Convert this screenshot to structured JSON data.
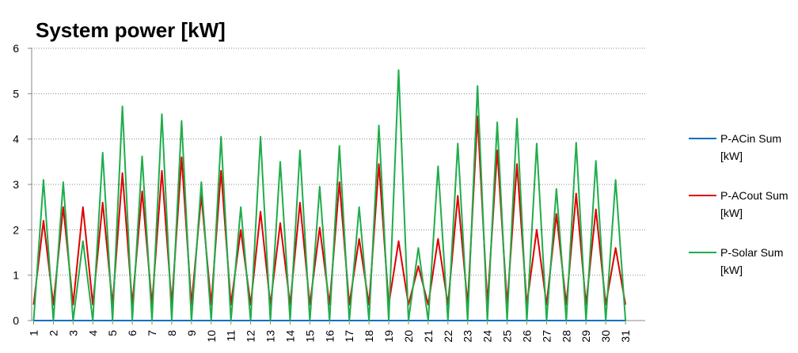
{
  "chart_data": {
    "type": "line",
    "title": "System power [kW]",
    "x": [
      1,
      1.5,
      2,
      2.5,
      3,
      3.5,
      4,
      4.5,
      5,
      5.5,
      6,
      6.5,
      7,
      7.5,
      8,
      8.5,
      9,
      9.5,
      10,
      10.5,
      11,
      11.5,
      12,
      12.5,
      13,
      13.5,
      14,
      14.5,
      15,
      15.5,
      16,
      16.5,
      17,
      17.5,
      18,
      18.5,
      19,
      19.5,
      20,
      20.5,
      21,
      21.5,
      22,
      22.5,
      23,
      23.5,
      24,
      24.5,
      25,
      25.5,
      26,
      26.5,
      27,
      27.5,
      28,
      28.5,
      29,
      29.5,
      30,
      30.5,
      31
    ],
    "series": [
      {
        "name": "P-ACin Sum [kW]",
        "color": "#0070c0",
        "values": [
          0,
          0,
          0,
          0,
          0,
          0,
          0,
          0,
          0,
          0,
          0,
          0,
          0,
          0,
          0,
          0,
          0,
          0,
          0,
          0,
          0,
          0,
          0,
          0,
          0,
          0,
          0,
          0,
          0,
          0,
          0,
          0,
          0,
          0,
          0,
          0,
          0,
          0,
          0,
          0,
          0,
          0,
          0,
          0,
          0,
          0,
          0,
          0,
          0,
          0,
          0,
          0,
          0,
          0,
          0,
          0,
          0,
          0,
          0,
          0,
          0
        ]
      },
      {
        "name": "P-ACout Sum [kW]",
        "color": "#e00000",
        "values": [
          0.35,
          2.2,
          0.35,
          2.5,
          0.35,
          2.5,
          0.35,
          2.6,
          0.35,
          3.25,
          0.35,
          2.85,
          0.35,
          3.3,
          0.35,
          3.6,
          0.35,
          2.75,
          0.35,
          3.3,
          0.35,
          2.0,
          0.35,
          2.4,
          0.35,
          2.15,
          0.35,
          2.6,
          0.35,
          2.05,
          0.35,
          3.05,
          0.35,
          1.8,
          0.35,
          3.45,
          0.35,
          1.75,
          0.35,
          1.2,
          0.35,
          1.8,
          0.35,
          2.75,
          0.35,
          4.5,
          0.35,
          3.75,
          0.35,
          3.45,
          0.35,
          2.0,
          0.35,
          2.35,
          0.35,
          2.8,
          0.35,
          2.45,
          0.35,
          1.6,
          0.35
        ]
      },
      {
        "name": "P-Solar Sum [kW]",
        "color": "#1fad4b",
        "values": [
          0,
          3.1,
          0,
          3.05,
          0,
          1.75,
          0,
          3.7,
          0,
          4.72,
          0,
          3.62,
          0,
          4.55,
          0,
          4.4,
          0,
          3.05,
          0,
          4.05,
          0,
          2.5,
          0,
          4.05,
          0,
          3.5,
          0,
          3.75,
          0,
          2.95,
          0,
          3.85,
          0,
          2.5,
          0,
          4.3,
          0,
          5.52,
          0,
          1.6,
          0,
          3.4,
          0,
          3.9,
          0,
          5.17,
          0,
          4.37,
          0,
          4.45,
          0,
          3.9,
          0,
          2.9,
          0,
          3.92,
          0,
          3.52,
          0,
          3.1,
          0
        ]
      }
    ],
    "xlim": [
      0.9,
      32
    ],
    "xticks": [
      1,
      2,
      3,
      4,
      5,
      6,
      7,
      8,
      9,
      10,
      11,
      12,
      13,
      14,
      15,
      16,
      17,
      18,
      19,
      20,
      21,
      22,
      23,
      24,
      25,
      26,
      27,
      28,
      29,
      30,
      31
    ],
    "ylim": [
      0,
      6
    ],
    "yticks": [
      0,
      1,
      2,
      3,
      4,
      5,
      6
    ],
    "grid": true,
    "legend": "right"
  }
}
